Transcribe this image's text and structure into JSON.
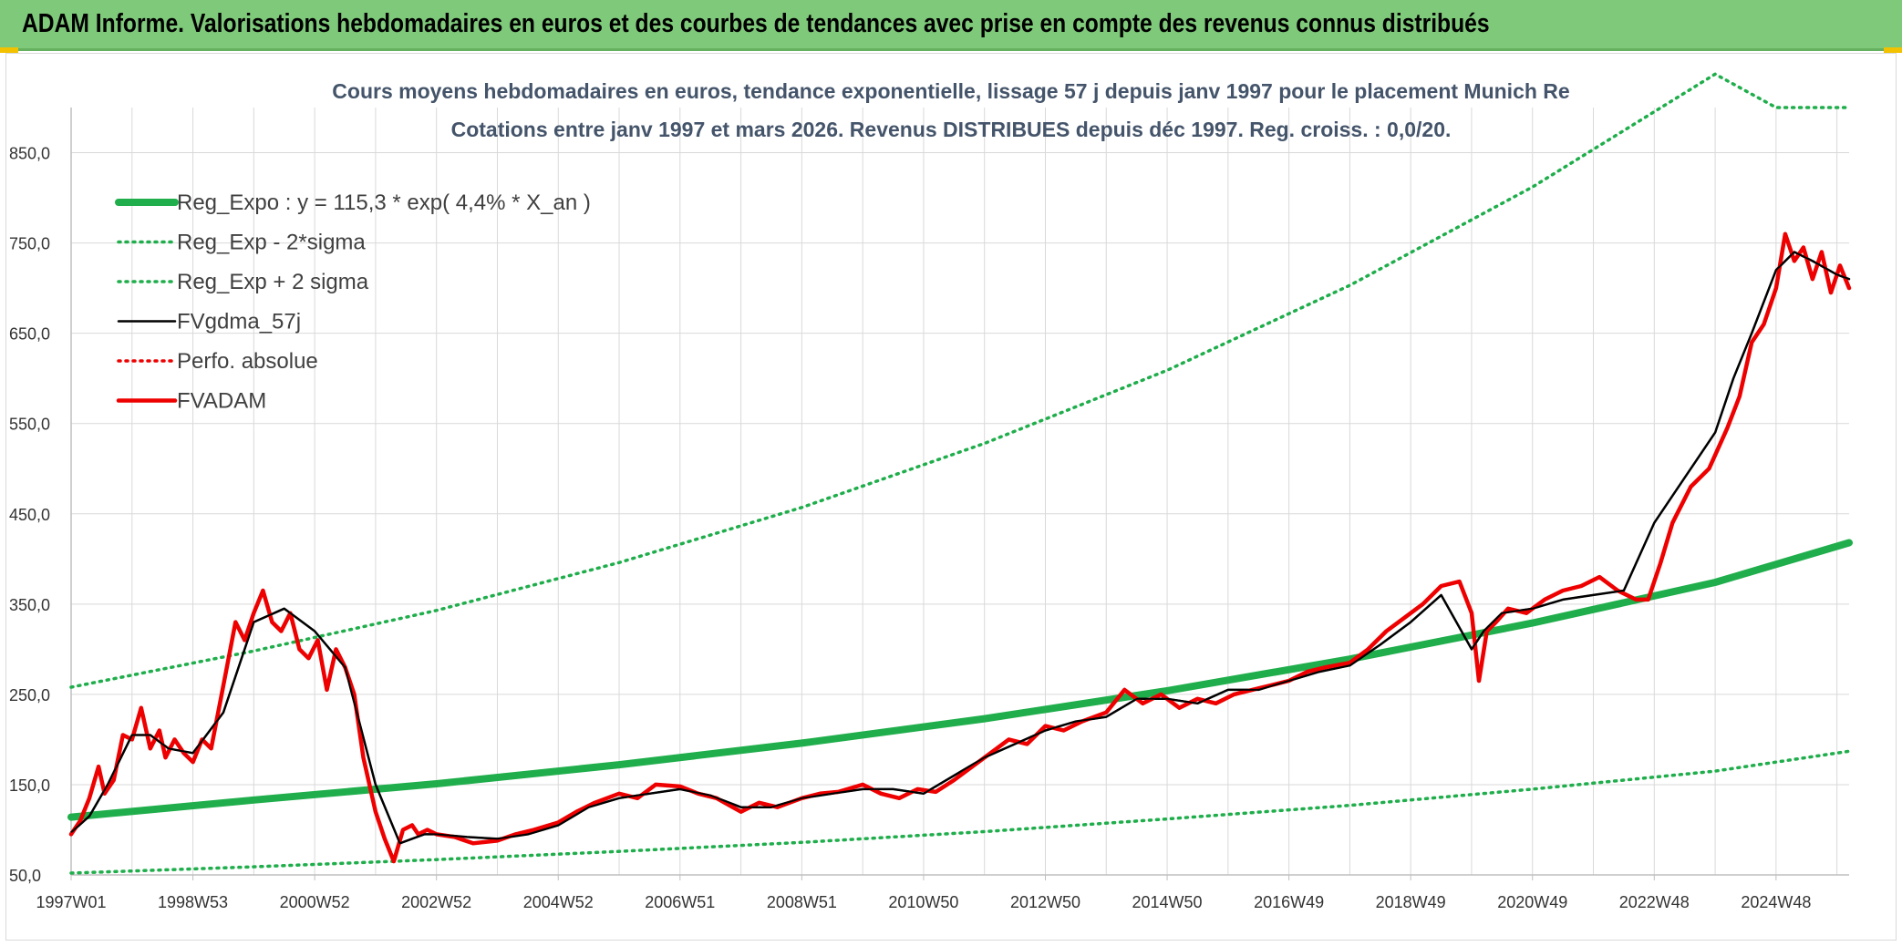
{
  "banner": {
    "title": "ADAM Informe. Valorisations hebdomadaires en euros et des courbes de tendances avec prise en compte des revenus connus distribués"
  },
  "colors": {
    "banner_bg": "#7fc97a",
    "green": "#1fae4b",
    "red": "#ee0000",
    "black": "#000000",
    "grid": "#d9d9d9"
  },
  "chart_data": {
    "type": "line",
    "title": "Cours moyens hebdomadaires en euros, tendance exponentielle, lissage 57 j depuis janv 1997 pour le placement Munich Re",
    "subtitle": "Cotations entre janv 1997 et mars 2026. Revenus DISTRIBUES depuis déc 1997. Reg. croiss. : 0,0/20.",
    "xlabel": "",
    "ylabel": "",
    "xlim": [
      1997.0,
      2026.2
    ],
    "ylim": [
      50,
      900
    ],
    "y_ticks": [
      50,
      150,
      250,
      350,
      450,
      550,
      650,
      750,
      850
    ],
    "y_tick_labels": [
      "50,0",
      "150,0",
      "250,0",
      "350,0",
      "450,0",
      "550,0",
      "650,0",
      "750,0",
      "850,0"
    ],
    "x_ticks": [
      1997.0,
      1999.0,
      2001.0,
      2003.0,
      2005.0,
      2007.0,
      2009.0,
      2011.0,
      2013.0,
      2015.0,
      2017.0,
      2019.0,
      2021.0,
      2023.0,
      2025.0
    ],
    "x_tick_labels": [
      "1997W01",
      "1998W53",
      "2000W52",
      "2002W52",
      "2004W52",
      "2006W51",
      "2008W51",
      "2010W50",
      "2012W50",
      "2014W50",
      "2016W49",
      "2018W49",
      "2020W49",
      "2022W48",
      "2024W48"
    ],
    "legend_position": "top-left",
    "series": [
      {
        "name": "Reg_Expo : y = 115,3 * exp( 4,4% *  X_an )",
        "style": "solid-thick",
        "color": "#1fae4b",
        "x": [
          1997.0,
          2000.0,
          2003.0,
          2006.0,
          2009.0,
          2012.0,
          2015.0,
          2018.0,
          2021.0,
          2024.0,
          2026.2
        ],
        "values": [
          114,
          133,
          151,
          172,
          196,
          223,
          254,
          289,
          329,
          374,
          418
        ]
      },
      {
        "name": "Reg_Exp - 2*sigma",
        "style": "dotted",
        "color": "#1fae4b",
        "x": [
          1997.0,
          2000.0,
          2003.0,
          2006.0,
          2009.0,
          2012.0,
          2015.0,
          2018.0,
          2021.0,
          2024.0,
          2026.2
        ],
        "values": [
          52,
          59,
          67,
          76,
          86,
          98,
          112,
          127,
          145,
          165,
          187
        ]
      },
      {
        "name": "Reg_Exp + 2 sigma",
        "style": "dotted",
        "color": "#1fae4b",
        "x": [
          1997.0,
          2000.0,
          2003.0,
          2006.0,
          2009.0,
          2012.0,
          2015.0,
          2018.0,
          2021.0,
          2024.0,
          2025.0,
          2026.2
        ],
        "values": [
          258,
          298,
          343,
          396,
          457,
          528,
          609,
          703,
          812,
          937,
          900,
          900
        ]
      },
      {
        "name": "FVgdma_57j",
        "style": "solid",
        "color": "#000000",
        "x": [
          1997.0,
          1997.3,
          1997.6,
          1998.0,
          1998.3,
          1998.6,
          1999.0,
          1999.5,
          2000.0,
          2000.5,
          2001.0,
          2001.5,
          2002.0,
          2002.4,
          2002.8,
          2003.0,
          2003.5,
          2004.0,
          2004.5,
          2005.0,
          2005.5,
          2006.0,
          2006.5,
          2007.0,
          2007.5,
          2008.0,
          2008.5,
          2009.0,
          2009.5,
          2010.0,
          2010.5,
          2011.0,
          2011.5,
          2012.0,
          2012.5,
          2013.0,
          2013.5,
          2014.0,
          2014.5,
          2015.0,
          2015.5,
          2016.0,
          2016.5,
          2017.0,
          2017.5,
          2018.0,
          2018.5,
          2019.0,
          2019.5,
          2020.0,
          2020.2,
          2020.5,
          2021.0,
          2021.5,
          2022.0,
          2022.5,
          2023.0,
          2023.5,
          2024.0,
          2024.3,
          2024.6,
          2025.0,
          2025.3,
          2025.6,
          2026.0,
          2026.2
        ],
        "values": [
          97,
          115,
          150,
          205,
          205,
          190,
          185,
          230,
          330,
          345,
          320,
          280,
          150,
          85,
          95,
          95,
          92,
          90,
          95,
          105,
          125,
          135,
          140,
          145,
          138,
          125,
          125,
          135,
          140,
          145,
          145,
          140,
          160,
          180,
          195,
          210,
          220,
          225,
          245,
          245,
          240,
          255,
          255,
          265,
          275,
          282,
          305,
          330,
          360,
          300,
          320,
          340,
          345,
          355,
          360,
          365,
          440,
          490,
          540,
          600,
          650,
          720,
          740,
          730,
          715,
          710
        ]
      },
      {
        "name": "Perfo. absolue",
        "style": "dotted",
        "color": "#ee0000",
        "x": [],
        "values": []
      },
      {
        "name": "FVADAM",
        "style": "solid-thick",
        "color": "#ee0000",
        "x": [
          1997.0,
          1997.15,
          1997.3,
          1997.45,
          1997.55,
          1997.7,
          1997.85,
          1998.0,
          1998.15,
          1998.3,
          1998.45,
          1998.55,
          1998.7,
          1998.85,
          1999.0,
          1999.15,
          1999.3,
          1999.5,
          1999.7,
          1999.85,
          2000.0,
          2000.15,
          2000.3,
          2000.45,
          2000.6,
          2000.75,
          2000.9,
          2001.05,
          2001.2,
          2001.35,
          2001.5,
          2001.65,
          2001.8,
          2002.0,
          2002.15,
          2002.3,
          2002.45,
          2002.6,
          2002.7,
          2002.85,
          2003.0,
          2003.3,
          2003.6,
          2004.0,
          2004.3,
          2004.6,
          2005.0,
          2005.3,
          2005.6,
          2006.0,
          2006.3,
          2006.6,
          2007.0,
          2007.3,
          2007.6,
          2008.0,
          2008.3,
          2008.6,
          2009.0,
          2009.3,
          2009.6,
          2010.0,
          2010.3,
          2010.6,
          2010.9,
          2011.2,
          2011.5,
          2011.8,
          2012.1,
          2012.4,
          2012.7,
          2013.0,
          2013.3,
          2013.6,
          2014.0,
          2014.3,
          2014.6,
          2014.9,
          2015.2,
          2015.5,
          2015.8,
          2016.1,
          2016.4,
          2016.7,
          2017.0,
          2017.3,
          2017.6,
          2018.0,
          2018.3,
          2018.6,
          2018.9,
          2019.2,
          2019.5,
          2019.8,
          2020.0,
          2020.12,
          2020.25,
          2020.4,
          2020.6,
          2020.9,
          2021.2,
          2021.5,
          2021.8,
          2022.1,
          2022.4,
          2022.7,
          2022.9,
          2023.1,
          2023.3,
          2023.6,
          2023.9,
          2024.2,
          2024.4,
          2024.6,
          2024.8,
          2025.0,
          2025.15,
          2025.3,
          2025.45,
          2025.6,
          2025.75,
          2025.9,
          2026.05,
          2026.2
        ],
        "values": [
          95,
          110,
          135,
          170,
          140,
          155,
          205,
          200,
          235,
          190,
          210,
          180,
          200,
          185,
          175,
          200,
          190,
          260,
          330,
          310,
          340,
          365,
          330,
          320,
          340,
          300,
          290,
          310,
          255,
          300,
          280,
          250,
          180,
          120,
          90,
          65,
          100,
          105,
          95,
          100,
          95,
          92,
          85,
          88,
          95,
          100,
          108,
          120,
          130,
          140,
          135,
          150,
          148,
          140,
          135,
          120,
          130,
          125,
          135,
          140,
          142,
          150,
          140,
          135,
          145,
          142,
          155,
          170,
          185,
          200,
          195,
          215,
          210,
          220,
          230,
          255,
          240,
          250,
          235,
          245,
          240,
          250,
          255,
          260,
          265,
          275,
          280,
          285,
          300,
          320,
          335,
          350,
          370,
          375,
          340,
          265,
          320,
          330,
          345,
          340,
          355,
          365,
          370,
          380,
          365,
          355,
          355,
          395,
          440,
          480,
          500,
          545,
          580,
          640,
          660,
          700,
          760,
          730,
          745,
          710,
          740,
          695,
          725,
          700
        ]
      }
    ]
  }
}
